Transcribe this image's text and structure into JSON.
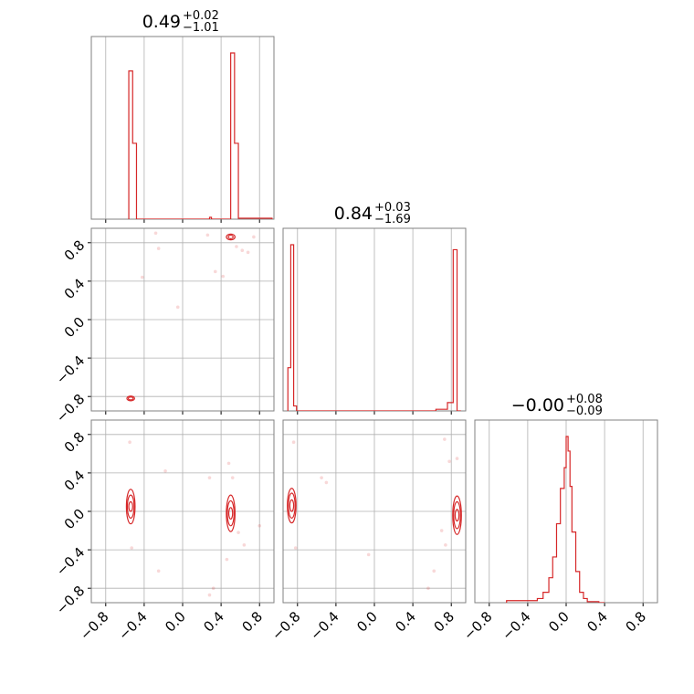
{
  "figure": {
    "background": "#ffffff",
    "line_color": "#d62728",
    "grid_color": "#b0b0b0",
    "frame_color": "#808080"
  },
  "chart_data": {
    "type": "corner",
    "n_params": 3,
    "ranges": [
      [
        -0.95,
        0.95
      ],
      [
        -0.95,
        0.95
      ],
      [
        -0.95,
        0.95
      ]
    ],
    "grid": true,
    "diag_ticks": [
      -0.8,
      -0.4,
      0.0,
      0.4,
      0.8
    ],
    "tick_labels": [
      "−0.8",
      "−0.4",
      "0.0",
      "0.4",
      "0.8"
    ],
    "titles": [
      {
        "median": "0.49",
        "plus": "+0.02",
        "minus": "−1.01"
      },
      {
        "median": "0.84",
        "plus": "+0.03",
        "minus": "−1.69"
      },
      {
        "median": "−0.00",
        "plus": "+0.08",
        "minus": "−0.09"
      }
    ],
    "histograms": [
      {
        "param": 0,
        "bin_edges": [
          -0.56,
          -0.52,
          -0.48,
          0.28,
          0.3,
          0.5,
          0.54,
          0.58,
          0.9,
          0.93
        ],
        "counts": [
          0.82,
          0.42,
          0,
          0.01,
          0,
          0.92,
          0.42,
          0.005,
          0.005
        ]
      },
      {
        "param": 1,
        "bin_edges": [
          -0.9,
          -0.87,
          -0.84,
          -0.81,
          0.64,
          0.76,
          0.82,
          0.86,
          0.9
        ],
        "counts": [
          0.26,
          1.0,
          0.03,
          0,
          0.01,
          0.05,
          0.97,
          0
        ]
      },
      {
        "param": 2,
        "bin_edges": [
          -0.62,
          -0.46,
          -0.3,
          -0.24,
          -0.18,
          -0.14,
          -0.1,
          -0.06,
          -0.02,
          0.0,
          0.02,
          0.04,
          0.06,
          0.1,
          0.14,
          0.18,
          0.22,
          0.34,
          0.4
        ],
        "counts": [
          0.01,
          0.01,
          0.02,
          0.05,
          0.12,
          0.22,
          0.38,
          0.55,
          0.65,
          0.8,
          0.73,
          0.56,
          0.34,
          0.15,
          0.05,
          0.02,
          0.005,
          0
        ]
      }
    ],
    "pairs": [
      {
        "x_param": 0,
        "y_param": 1,
        "clusters": [
          {
            "cx": 0.5,
            "cy": 0.86,
            "rx": [
              0.025,
              0.045
            ],
            "ry": [
              0.018,
              0.03
            ],
            "fill": true
          },
          {
            "cx": -0.54,
            "cy": -0.82,
            "rx": [
              0.025,
              0.04
            ],
            "ry": [
              0.015,
              0.025
            ],
            "fill": true
          }
        ],
        "scatter": [
          [
            0.26,
            0.88
          ],
          [
            -0.25,
            0.74
          ],
          [
            0.34,
            0.5
          ],
          [
            0.42,
            0.45
          ],
          [
            0.62,
            0.72
          ],
          [
            0.68,
            0.7
          ],
          [
            -0.42,
            0.44
          ],
          [
            -0.05,
            0.13
          ],
          [
            0.56,
            0.76
          ],
          [
            0.74,
            0.86
          ],
          [
            -0.28,
            0.9
          ]
        ]
      },
      {
        "x_param": 0,
        "y_param": 2,
        "clusters": [
          {
            "cx": -0.54,
            "cy": 0.05,
            "rx": [
              0.02,
              0.035,
              0.045
            ],
            "ry": [
              0.05,
              0.12,
              0.18
            ],
            "fill": false
          },
          {
            "cx": 0.5,
            "cy": -0.02,
            "rx": [
              0.02,
              0.035,
              0.045
            ],
            "ry": [
              0.06,
              0.13,
              0.19
            ],
            "fill": false
          }
        ],
        "scatter": [
          [
            -0.55,
            0.72
          ],
          [
            0.28,
            0.35
          ],
          [
            -0.25,
            -0.62
          ],
          [
            0.48,
            0.5
          ],
          [
            0.58,
            -0.22
          ],
          [
            0.8,
            -0.15
          ],
          [
            0.64,
            -0.35
          ],
          [
            0.32,
            -0.8
          ],
          [
            0.28,
            -0.87
          ],
          [
            -0.53,
            -0.38
          ],
          [
            -0.18,
            0.42
          ],
          [
            0.46,
            -0.5
          ],
          [
            0.52,
            0.35
          ]
        ]
      },
      {
        "x_param": 1,
        "y_param": 2,
        "clusters": [
          {
            "cx": -0.86,
            "cy": 0.06,
            "rx": [
              0.02,
              0.035,
              0.045
            ],
            "ry": [
              0.06,
              0.13,
              0.18
            ],
            "fill": false
          },
          {
            "cx": 0.86,
            "cy": -0.04,
            "rx": [
              0.02,
              0.035,
              0.045
            ],
            "ry": [
              0.06,
              0.14,
              0.2
            ],
            "fill": false
          }
        ],
        "scatter": [
          [
            -0.84,
            0.72
          ],
          [
            -0.55,
            0.35
          ],
          [
            0.73,
            0.75
          ],
          [
            0.78,
            0.52
          ],
          [
            0.7,
            -0.2
          ],
          [
            0.62,
            -0.62
          ],
          [
            0.56,
            -0.8
          ],
          [
            -0.06,
            -0.45
          ],
          [
            -0.82,
            -0.38
          ],
          [
            0.74,
            -0.35
          ],
          [
            -0.5,
            0.3
          ],
          [
            0.86,
            0.55
          ]
        ]
      }
    ]
  }
}
